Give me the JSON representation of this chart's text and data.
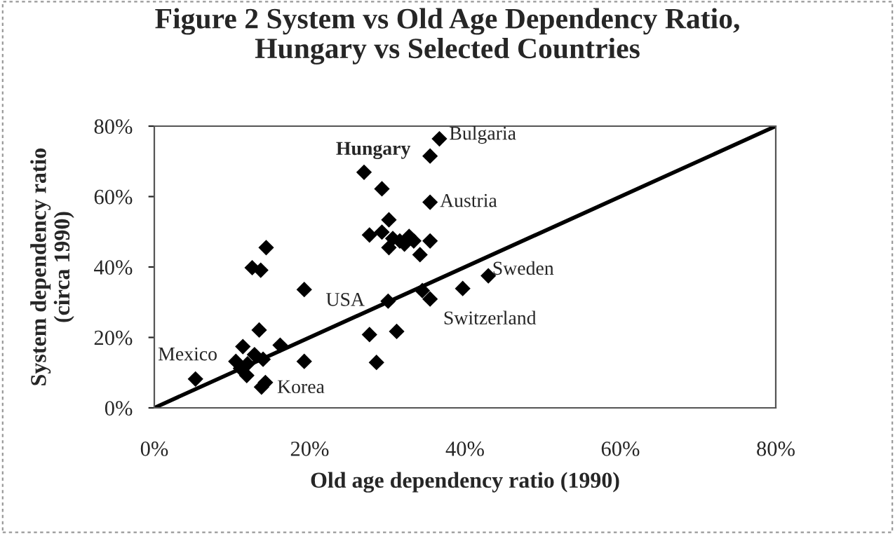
{
  "chart_data": {
    "type": "scatter",
    "title": "Figure 2 System vs Old Age Dependency Ratio,\nHungary vs Selected Countries",
    "xlabel": "Old age dependency ratio (1990)",
    "ylabel": "System dependency ratio\n(circa 1990)",
    "xlim": [
      0,
      80
    ],
    "ylim": [
      0,
      80
    ],
    "xticks": [
      {
        "value": 0,
        "label": "0%"
      },
      {
        "value": 20,
        "label": "20%"
      },
      {
        "value": 40,
        "label": "40%"
      },
      {
        "value": 60,
        "label": "60%"
      },
      {
        "value": 80,
        "label": "80%"
      }
    ],
    "yticks": [
      {
        "value": 0,
        "label": "0%"
      },
      {
        "value": 20,
        "label": "20%"
      },
      {
        "value": 40,
        "label": "40%"
      },
      {
        "value": 60,
        "label": "60%"
      },
      {
        "value": 80,
        "label": "80%"
      }
    ],
    "grid": false,
    "legend": false,
    "marker": "diamond",
    "series": [
      {
        "color": "#000000",
        "x": [
          36.7,
          35.5,
          27.0,
          29.3,
          35.5,
          30.2,
          27.7,
          29.3,
          30.7,
          31.6,
          32.8,
          33.4,
          34.2,
          35.5,
          30.2,
          32.2,
          14.4,
          12.6,
          13.7,
          19.3,
          30.1,
          34.5,
          35.5,
          39.7,
          43.0,
          27.7,
          31.2,
          28.6,
          19.3,
          16.2,
          13.5,
          11.4,
          5.3,
          10.5,
          12.0,
          14.0,
          12.9,
          11.9,
          13.8,
          14.3,
          11.1
        ],
        "values": [
          76.4,
          71.5,
          66.9,
          62.2,
          58.4,
          53.4,
          49.1,
          49.9,
          48.1,
          47.4,
          48.7,
          47.4,
          43.5,
          47.4,
          45.5,
          46.5,
          45.5,
          39.8,
          39.1,
          33.6,
          30.3,
          33.3,
          30.9,
          33.9,
          37.5,
          20.8,
          21.7,
          12.9,
          13.2,
          17.8,
          22.1,
          17.4,
          8.2,
          13.2,
          12.5,
          13.8,
          15.1,
          9.2,
          5.9,
          7.2,
          11.2
        ]
      },
      {
        "type": "line",
        "color": "#000000",
        "x": [
          0,
          80
        ],
        "values": [
          0,
          80
        ],
        "line_style": "solid",
        "marker": "none"
      }
    ],
    "annotations": [
      {
        "text": "Bulgaria",
        "x": 36.7,
        "y": 76.4
      },
      {
        "text": "Hungary",
        "x": 35.5,
        "y": 71.5
      },
      {
        "text": "Austria",
        "x": 35.5,
        "y": 58.4
      },
      {
        "text": "Sweden",
        "x": 43.0,
        "y": 37.5
      },
      {
        "text": "Switzerland",
        "x": 39.7,
        "y": 33.9
      },
      {
        "text": "USA",
        "x": 30.1,
        "y": 30.3
      },
      {
        "text": "Mexico",
        "x": 5.3,
        "y": 8.2
      },
      {
        "text": "Korea",
        "x": 14.3,
        "y": 7.2
      }
    ]
  }
}
